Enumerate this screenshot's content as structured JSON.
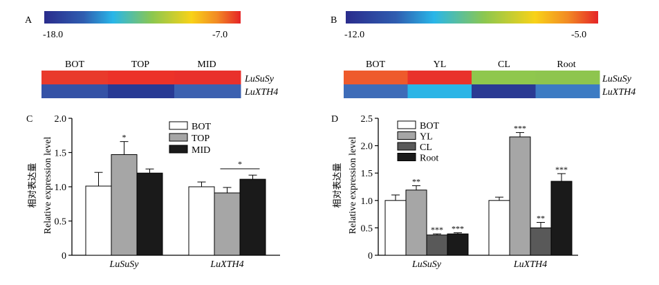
{
  "panels": {
    "A": {
      "letter": "A",
      "colorbar": {
        "min_label": "-18.0",
        "max_label": "-7.0",
        "min": -18.0,
        "max": -7.0
      },
      "columns": [
        "BOT",
        "TOP",
        "MID"
      ],
      "genes": [
        "LuSuSy",
        "LuXTH4"
      ]
    },
    "B": {
      "letter": "B",
      "colorbar": {
        "min_label": "-12.0",
        "max_label": "-5.0",
        "min": -12.0,
        "max": -5.0
      },
      "columns": [
        "BOT",
        "YL",
        "CL",
        "Root"
      ],
      "genes": [
        "LuSuSy",
        "LuXTH4"
      ]
    },
    "C": {
      "letter": "C"
    },
    "D": {
      "letter": "D"
    }
  },
  "colors": {
    "heat_A_row1": [
      "#e93a2b",
      "#ec3229",
      "#e9302b"
    ],
    "heat_A_row2": [
      "#3552a6",
      "#283a94",
      "#3c61b0"
    ],
    "heat_B_row1": [
      "#ee5a2c",
      "#e9322b",
      "#8fc74d",
      "#8ec54e"
    ],
    "heat_B_row2": [
      "#3e6cb8",
      "#2bb5e6",
      "#2a3a93",
      "#3c7bc3"
    ],
    "bar_BOT": "#ffffff",
    "bar_TOP_YL": "#a6a6a6",
    "bar_CL": "#595959",
    "bar_MID_Root": "#1a1a1a"
  },
  "chart_data": [
    {
      "panel": "A",
      "type": "heatmap",
      "columns": [
        "BOT",
        "TOP",
        "MID"
      ],
      "rows": [
        "LuSuSy",
        "LuXTH4"
      ],
      "colorbar_range": [
        -18.0,
        -7.0
      ]
    },
    {
      "panel": "B",
      "type": "heatmap",
      "columns": [
        "BOT",
        "YL",
        "CL",
        "Root"
      ],
      "rows": [
        "LuSuSy",
        "LuXTH4"
      ],
      "colorbar_range": [
        -12.0,
        -5.0
      ]
    },
    {
      "panel": "C",
      "type": "bar",
      "categories": [
        "LuSuSy",
        "LuXTH4"
      ],
      "ylabel_cn": "相对表达量",
      "ylabel_en": "Relative expression level",
      "ylim": [
        0,
        2.0
      ],
      "yticks": [
        "0",
        "0.5",
        "1.0",
        "1.5",
        "2.0"
      ],
      "legend_position": "top-right",
      "series": [
        {
          "name": "BOT",
          "values": [
            1.01,
            1.0
          ],
          "errors": [
            0.2,
            0.07
          ],
          "sig": [
            "",
            ""
          ]
        },
        {
          "name": "TOP",
          "values": [
            1.47,
            0.91
          ],
          "errors": [
            0.19,
            0.08
          ],
          "sig": [
            "*",
            ""
          ]
        },
        {
          "name": "MID",
          "values": [
            1.2,
            1.11
          ],
          "errors": [
            0.06,
            0.06
          ],
          "sig": [
            "",
            ""
          ]
        }
      ],
      "annotations": [
        {
          "text": "*",
          "category": "LuXTH4",
          "type": "bracket"
        }
      ]
    },
    {
      "panel": "D",
      "type": "bar",
      "categories": [
        "LuSuSy",
        "LuXTH4"
      ],
      "ylabel_cn": "相对表达量",
      "ylabel_en": "Relative expression level",
      "ylim": [
        0,
        2.5
      ],
      "yticks": [
        "0",
        "0.5",
        "1.0",
        "1.5",
        "2.0",
        "2.5"
      ],
      "legend_position": "top-left",
      "series": [
        {
          "name": "BOT",
          "values": [
            1.0,
            1.0
          ],
          "errors": [
            0.1,
            0.06
          ],
          "sig": [
            "",
            ""
          ]
        },
        {
          "name": "YL",
          "values": [
            1.19,
            2.16
          ],
          "errors": [
            0.08,
            0.08
          ],
          "sig": [
            "**",
            "***"
          ]
        },
        {
          "name": "CL",
          "values": [
            0.37,
            0.5
          ],
          "errors": [
            0.02,
            0.1
          ],
          "sig": [
            "***",
            "**"
          ]
        },
        {
          "name": "Root",
          "values": [
            0.39,
            1.35
          ],
          "errors": [
            0.02,
            0.14
          ],
          "sig": [
            "***",
            "***"
          ]
        }
      ]
    }
  ]
}
